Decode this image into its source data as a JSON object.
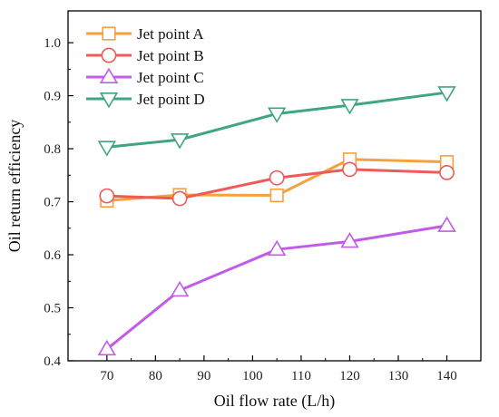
{
  "chart_data": {
    "type": "line",
    "x": [
      70,
      85,
      105,
      120,
      140
    ],
    "xlabel": "Oil flow rate (L/h)",
    "ylabel": "Oil return efficiency",
    "xlim": [
      62,
      147
    ],
    "ylim": [
      0.4,
      1.06
    ],
    "xticks": [
      70,
      80,
      90,
      100,
      110,
      120,
      130,
      140
    ],
    "yticks": [
      0.4,
      0.5,
      0.6,
      0.7,
      0.8,
      0.9,
      1.0
    ],
    "xtick_labels": [
      "70",
      "80",
      "90",
      "100",
      "110",
      "120",
      "130",
      "140"
    ],
    "ytick_labels": [
      "0.4",
      "0.5",
      "0.6",
      "0.7",
      "0.8",
      "0.9",
      "1.0"
    ],
    "grid": false,
    "legend_position": "top-left",
    "series": [
      {
        "name": "Jet point A",
        "marker": "square",
        "color": "#F5A140",
        "values": [
          0.702,
          0.713,
          0.712,
          0.78,
          0.775
        ]
      },
      {
        "name": "Jet point B",
        "marker": "circle",
        "color": "#EE5A5A",
        "values": [
          0.711,
          0.706,
          0.745,
          0.761,
          0.755
        ]
      },
      {
        "name": "Jet point C",
        "marker": "triangle-up",
        "color": "#C25BE8",
        "values": [
          0.422,
          0.533,
          0.61,
          0.625,
          0.655
        ]
      },
      {
        "name": "Jet point D",
        "marker": "triangle-down",
        "color": "#3FA584",
        "values": [
          0.803,
          0.817,
          0.866,
          0.882,
          0.906
        ]
      }
    ]
  }
}
